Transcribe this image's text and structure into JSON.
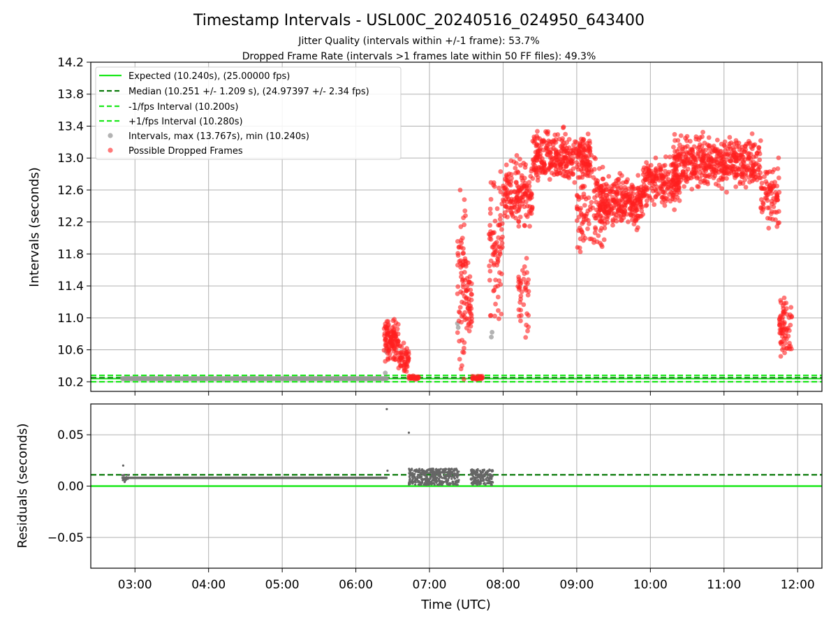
{
  "title": "Timestamp Intervals - USL00C_20240516_024950_643400",
  "subtitle1": "Jitter Quality (intervals within +/-1 frame): 53.7%",
  "subtitle2": "Dropped Frame Rate (intervals >1 frames late within 50 FF files): 49.3%",
  "colors": {
    "expected": "#1be81b",
    "median": "#0a7a0a",
    "fps_band": "#1be81b",
    "intervals": "#999999",
    "dropped": "#ff1f1f",
    "residual_points": "#666666",
    "grid": "#b0b0b0"
  },
  "chart_data": [
    {
      "type": "scatter",
      "name": "intervals",
      "ylabel": "Intervals (seconds)",
      "xlim_hours": [
        2.4,
        12.33
      ],
      "ylim": [
        10.08,
        14.2
      ],
      "y_ticks": [
        10.2,
        10.6,
        11.0,
        11.4,
        11.8,
        12.2,
        12.6,
        13.0,
        13.4,
        13.8,
        14.2
      ],
      "y_tick_labels": [
        "10.2",
        "10.6",
        "11.0",
        "11.4",
        "11.8",
        "12.2",
        "12.6",
        "13.0",
        "13.4",
        "13.8",
        "14.2"
      ],
      "grid": true,
      "legend_position": "upper-left",
      "legend": [
        "Expected (10.240s), (25.00000 fps)",
        "Median (10.251 +/- 1.209 s), (24.97397 +/- 2.34 fps)",
        "-1/fps Interval (10.200s)",
        "+1/fps Interval (10.280s)",
        "Intervals, max (13.767s), min (10.240s)",
        "Possible Dropped Frames"
      ],
      "expected": 10.24,
      "median": 10.251,
      "minus_fps": 10.2,
      "plus_fps": 10.28,
      "normal_intervals_span_hours": [
        2.83,
        6.42
      ],
      "normal_interval_value": 10.24,
      "gray_outliers": [
        [
          6.4,
          10.31
        ],
        [
          6.41,
          10.58
        ],
        [
          6.42,
          10.62
        ],
        [
          7.38,
          10.93
        ],
        [
          7.39,
          10.88
        ],
        [
          7.84,
          10.76
        ],
        [
          7.85,
          10.82
        ]
      ],
      "dropped_clusters": [
        {
          "x_start": 6.38,
          "x_end": 6.58,
          "y_center": 10.72,
          "y_spread": 0.22,
          "n": 110
        },
        {
          "x_start": 6.58,
          "x_end": 6.72,
          "y_center": 10.48,
          "y_spread": 0.16,
          "n": 50
        },
        {
          "x_start": 6.72,
          "x_end": 6.86,
          "y_center": 10.25,
          "y_spread": 0.02,
          "n": 30
        },
        {
          "x_start": 7.38,
          "x_end": 7.5,
          "y_center": 11.5,
          "y_spread": 0.9,
          "n": 70
        },
        {
          "x_start": 7.5,
          "x_end": 7.58,
          "y_center": 11.2,
          "y_spread": 0.35,
          "n": 40
        },
        {
          "x_start": 7.58,
          "x_end": 7.72,
          "y_center": 10.25,
          "y_spread": 0.02,
          "n": 30
        },
        {
          "x_start": 7.8,
          "x_end": 8.0,
          "y_center": 11.9,
          "y_spread": 0.75,
          "n": 80
        },
        {
          "x_start": 8.0,
          "x_end": 8.4,
          "y_center": 12.55,
          "y_spread": 0.35,
          "n": 160
        },
        {
          "x_start": 8.2,
          "x_end": 8.35,
          "y_center": 11.2,
          "y_spread": 0.45,
          "n": 40
        },
        {
          "x_start": 8.4,
          "x_end": 9.2,
          "y_center": 13.0,
          "y_spread": 0.28,
          "n": 330
        },
        {
          "x_start": 9.0,
          "x_end": 9.4,
          "y_center": 12.4,
          "y_spread": 0.5,
          "n": 120
        },
        {
          "x_start": 9.3,
          "x_end": 9.9,
          "y_center": 12.45,
          "y_spread": 0.28,
          "n": 260
        },
        {
          "x_start": 9.9,
          "x_end": 10.4,
          "y_center": 12.7,
          "y_spread": 0.25,
          "n": 200
        },
        {
          "x_start": 10.3,
          "x_end": 11.5,
          "y_center": 12.95,
          "y_spread": 0.27,
          "n": 470
        },
        {
          "x_start": 11.5,
          "x_end": 11.75,
          "y_center": 12.5,
          "y_spread": 0.4,
          "n": 80
        },
        {
          "x_start": 11.75,
          "x_end": 11.92,
          "y_center": 10.9,
          "y_spread": 0.3,
          "n": 70
        }
      ]
    },
    {
      "type": "scatter",
      "name": "residuals",
      "xlabel": "Time (UTC)",
      "ylabel": "Residuals (seconds)",
      "xlim_hours": [
        2.4,
        12.33
      ],
      "x_ticks_hours": [
        3,
        4,
        5,
        6,
        7,
        8,
        9,
        10,
        11,
        12
      ],
      "x_tick_labels": [
        "03:00",
        "04:00",
        "05:00",
        "06:00",
        "07:00",
        "08:00",
        "09:00",
        "10:00",
        "11:00",
        "12:00"
      ],
      "ylim": [
        -0.08,
        0.08
      ],
      "y_ticks": [
        -0.05,
        0.0,
        0.05
      ],
      "y_tick_labels": [
        "−0.05",
        "0.00",
        "0.05"
      ],
      "grid": true,
      "zero_line": 0.0,
      "median_line": 0.011,
      "baseline_span_hours": [
        2.83,
        6.42
      ],
      "baseline_value": 0.008,
      "isolated_points": [
        [
          2.84,
          0.02
        ],
        [
          2.86,
          0.004
        ],
        [
          6.42,
          0.075
        ],
        [
          6.43,
          0.015
        ],
        [
          6.72,
          0.052
        ]
      ],
      "residual_clusters": [
        {
          "x_start": 6.72,
          "x_end": 7.4,
          "y_min": 0.001,
          "y_max": 0.017,
          "n": 400
        },
        {
          "x_start": 7.56,
          "x_end": 7.86,
          "y_min": 0.001,
          "y_max": 0.017,
          "n": 180
        }
      ]
    }
  ]
}
